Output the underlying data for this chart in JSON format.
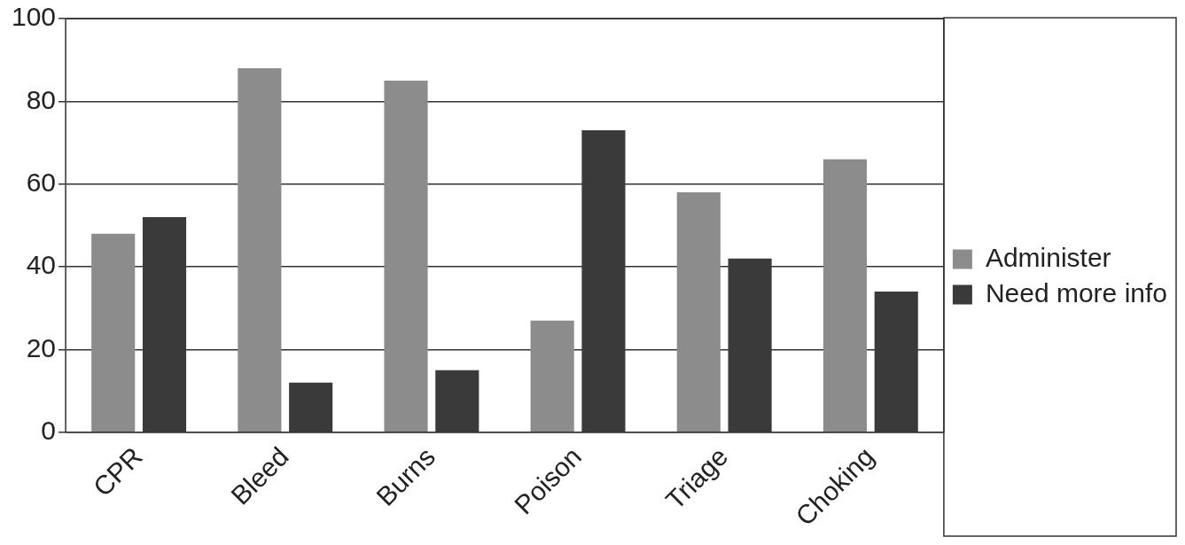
{
  "chart_data": {
    "type": "bar",
    "categories": [
      "CPR",
      "Bleed",
      "Burns",
      "Poison",
      "Triage",
      "Choking"
    ],
    "series": [
      {
        "name": "Administer",
        "color": "#8c8c8c",
        "values": [
          48,
          88,
          85,
          27,
          58,
          66
        ]
      },
      {
        "name": "Need more info",
        "color": "#3a3a3a",
        "values": [
          52,
          12,
          15,
          73,
          42,
          34
        ]
      }
    ],
    "ylim": [
      0,
      100
    ],
    "yticks": [
      0,
      20,
      40,
      60,
      80,
      100
    ],
    "grid": "y",
    "legend": "right"
  }
}
